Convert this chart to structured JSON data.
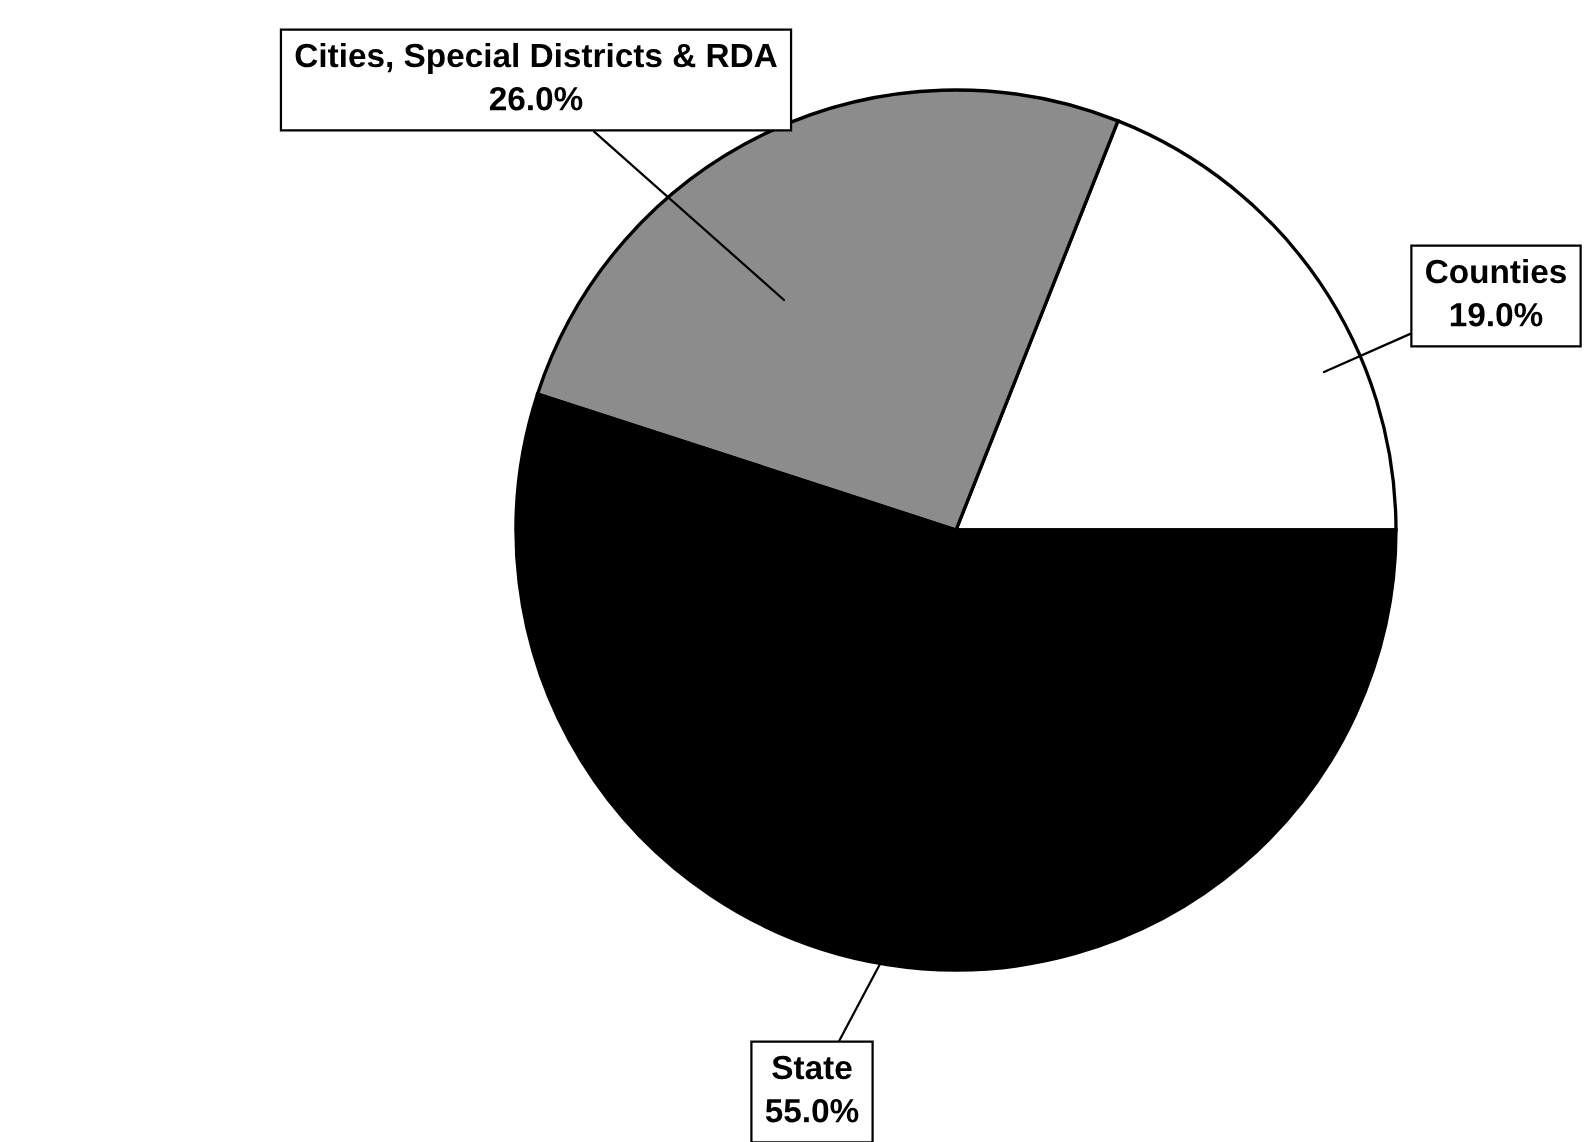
{
  "chart_data": {
    "type": "pie",
    "categories": [
      "Counties",
      "Cities, Special Districts & RDA",
      "State"
    ],
    "values": [
      19.0,
      26.0,
      55.0
    ],
    "value_labels": [
      "19.0%",
      "26.0%",
      "55.0%"
    ],
    "colors": [
      "#ffffff",
      "#8c8c8c",
      "#000000"
    ],
    "legend": false
  }
}
